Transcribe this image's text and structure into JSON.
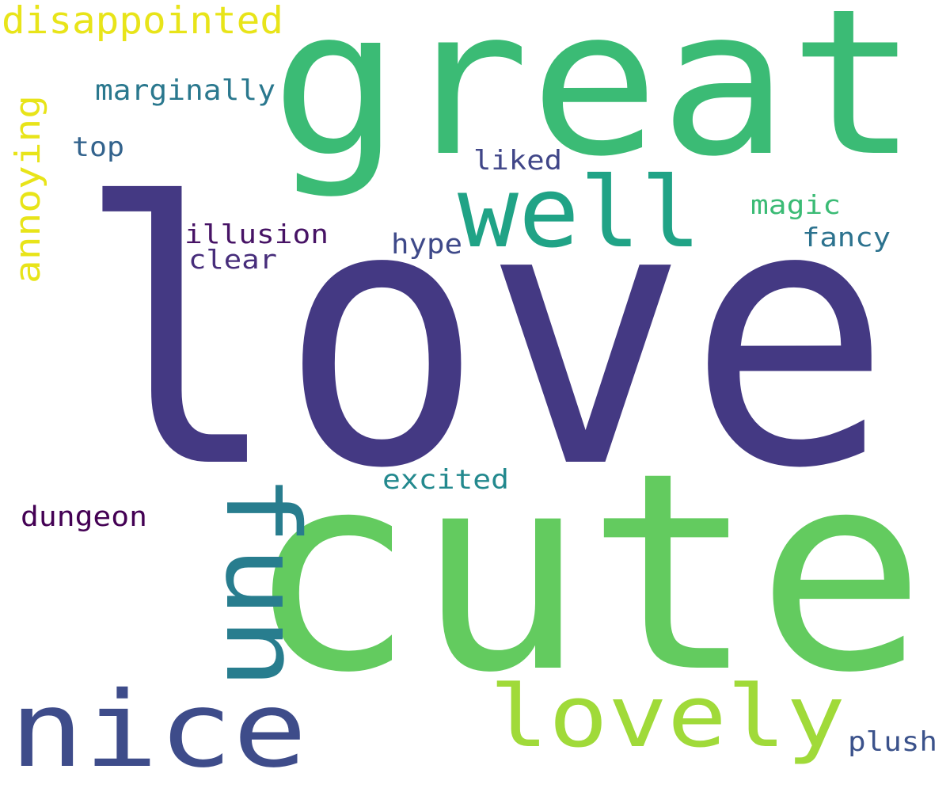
{
  "words": [
    {
      "id": "love",
      "text": "love",
      "color": "#443983"
    },
    {
      "id": "cute",
      "text": "cute",
      "color": "#63cb5f"
    },
    {
      "id": "great",
      "text": "great",
      "color": "#3bbb75"
    },
    {
      "id": "well",
      "text": "well",
      "color": "#20a386"
    },
    {
      "id": "fun",
      "text": "fun",
      "color": "#287d8e"
    },
    {
      "id": "nice",
      "text": "nice",
      "color": "#3e4c8a"
    },
    {
      "id": "lovely",
      "text": "lovely",
      "color": "#a0da39"
    },
    {
      "id": "disappointed",
      "text": "disappointed",
      "color": "#e8e419"
    },
    {
      "id": "annoying",
      "text": "annoying",
      "color": "#e8e419"
    },
    {
      "id": "marginally",
      "text": "marginally",
      "color": "#2a788e"
    },
    {
      "id": "top",
      "text": "top",
      "color": "#33638d"
    },
    {
      "id": "liked",
      "text": "liked",
      "color": "#404688"
    },
    {
      "id": "magic",
      "text": "magic",
      "color": "#3bbb75"
    },
    {
      "id": "fancy",
      "text": "fancy",
      "color": "#2c728e"
    },
    {
      "id": "illusion",
      "text": "illusion",
      "color": "#471365"
    },
    {
      "id": "clear",
      "text": "clear",
      "color": "#472d7b"
    },
    {
      "id": "hype",
      "text": "hype",
      "color": "#3e4989"
    },
    {
      "id": "excited",
      "text": "excited",
      "color": "#23898e"
    },
    {
      "id": "dungeon",
      "text": "dungeon",
      "color": "#440154"
    },
    {
      "id": "plush",
      "text": "plush",
      "color": "#3b528b"
    }
  ]
}
